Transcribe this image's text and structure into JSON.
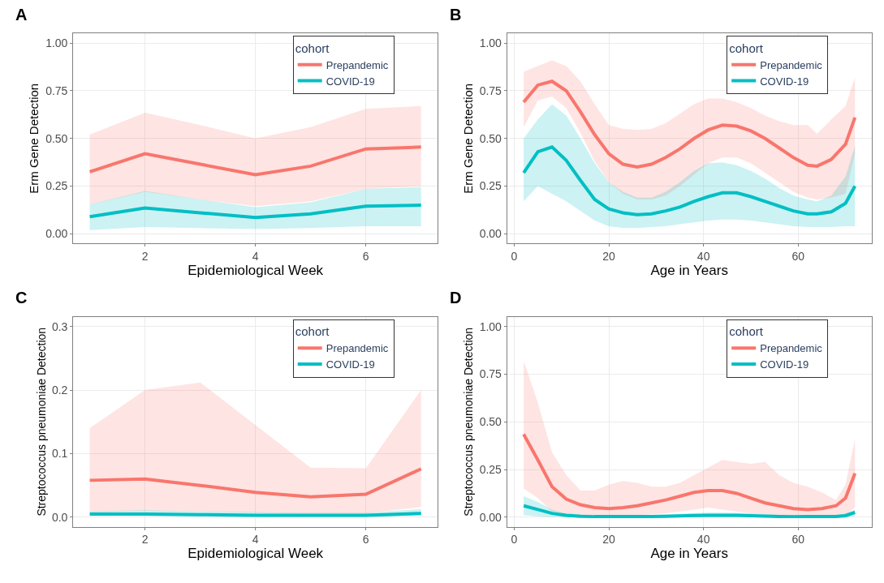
{
  "chart_data": [
    {
      "type": "line",
      "title": "A",
      "xlabel": "Epidemiological Week",
      "ylabel": "Erm Gene Detection",
      "legend_title": "cohort",
      "legend": "top right",
      "grid": true,
      "x": [
        1,
        2,
        3,
        4,
        5,
        6,
        7
      ],
      "xlim": [
        0.7,
        7.3
      ],
      "xticks": [
        2,
        4,
        6
      ],
      "ylim": [
        -0.05,
        1.05
      ],
      "yticks": [
        {
          "value": 0,
          "label": "0.00"
        },
        {
          "value": 0.25,
          "label": "0.25"
        },
        {
          "value": 0.5,
          "label": "0.50"
        },
        {
          "value": 0.75,
          "label": "0.75"
        },
        {
          "value": 1,
          "label": "1.00"
        }
      ],
      "series": [
        {
          "name": "Prepandemic",
          "color": "#f8766d",
          "values": [
            0.325,
            0.42,
            0.365,
            0.31,
            0.355,
            0.445,
            0.455
          ],
          "lower": [
            0.155,
            0.22,
            0.18,
            0.145,
            0.17,
            0.235,
            0.25
          ],
          "upper": [
            0.52,
            0.635,
            0.57,
            0.5,
            0.56,
            0.655,
            0.67
          ]
        },
        {
          "name": "COVID-19",
          "color": "#00bfc4",
          "values": [
            0.09,
            0.135,
            0.11,
            0.085,
            0.105,
            0.145,
            0.15
          ],
          "lower": [
            0.02,
            0.035,
            0.03,
            0.025,
            0.03,
            0.04,
            0.04
          ],
          "upper": [
            0.155,
            0.225,
            0.18,
            0.14,
            0.165,
            0.235,
            0.245
          ]
        }
      ]
    },
    {
      "type": "line",
      "title": "B",
      "xlabel": "Age in Years",
      "ylabel": "Erm Gene Detection",
      "legend_title": "cohort",
      "legend": "top right",
      "grid": true,
      "x": [
        2,
        5,
        8,
        11,
        14,
        17,
        20,
        23,
        26,
        29,
        32,
        35,
        38,
        41,
        44,
        47,
        50,
        53,
        56,
        59,
        62,
        64,
        67,
        70,
        72
      ],
      "xlim": [
        -1.5,
        75.5
      ],
      "xticks": [
        0,
        20,
        40,
        60
      ],
      "ylim": [
        -0.05,
        1.05
      ],
      "yticks": [
        {
          "value": 0,
          "label": "0.00"
        },
        {
          "value": 0.25,
          "label": "0.25"
        },
        {
          "value": 0.5,
          "label": "0.50"
        },
        {
          "value": 0.75,
          "label": "0.75"
        },
        {
          "value": 1,
          "label": "1.00"
        }
      ],
      "series": [
        {
          "name": "Prepandemic",
          "color": "#f8766d",
          "values": [
            0.69,
            0.78,
            0.8,
            0.75,
            0.64,
            0.52,
            0.42,
            0.365,
            0.35,
            0.365,
            0.4,
            0.445,
            0.5,
            0.545,
            0.57,
            0.565,
            0.54,
            0.5,
            0.45,
            0.4,
            0.36,
            0.355,
            0.39,
            0.47,
            0.61
          ],
          "lower": [
            0.56,
            0.7,
            0.72,
            0.66,
            0.53,
            0.38,
            0.27,
            0.21,
            0.18,
            0.18,
            0.2,
            0.25,
            0.31,
            0.37,
            0.4,
            0.4,
            0.37,
            0.32,
            0.27,
            0.22,
            0.19,
            0.18,
            0.19,
            0.21,
            0.42
          ],
          "upper": [
            0.85,
            0.88,
            0.91,
            0.88,
            0.8,
            0.68,
            0.57,
            0.55,
            0.545,
            0.55,
            0.58,
            0.63,
            0.68,
            0.71,
            0.71,
            0.69,
            0.66,
            0.62,
            0.59,
            0.57,
            0.57,
            0.525,
            0.6,
            0.67,
            0.82
          ]
        },
        {
          "name": "COVID-19",
          "color": "#00bfc4",
          "values": [
            0.32,
            0.43,
            0.455,
            0.385,
            0.28,
            0.18,
            0.13,
            0.11,
            0.1,
            0.105,
            0.12,
            0.14,
            0.17,
            0.195,
            0.215,
            0.215,
            0.195,
            0.17,
            0.145,
            0.12,
            0.105,
            0.105,
            0.115,
            0.16,
            0.25
          ],
          "lower": [
            0.17,
            0.25,
            0.21,
            0.17,
            0.12,
            0.07,
            0.04,
            0.03,
            0.03,
            0.035,
            0.04,
            0.05,
            0.06,
            0.07,
            0.075,
            0.075,
            0.07,
            0.06,
            0.05,
            0.04,
            0.035,
            0.035,
            0.035,
            0.04,
            0.04
          ],
          "upper": [
            0.5,
            0.6,
            0.68,
            0.62,
            0.5,
            0.37,
            0.27,
            0.22,
            0.19,
            0.19,
            0.22,
            0.27,
            0.33,
            0.37,
            0.375,
            0.36,
            0.33,
            0.29,
            0.24,
            0.2,
            0.18,
            0.17,
            0.2,
            0.3,
            0.46
          ]
        }
      ]
    },
    {
      "type": "line",
      "title": "C",
      "xlabel": "Epidemiological Week",
      "ylabel": "Streptococcus pneumoniae Detection",
      "legend_title": "cohort",
      "legend": "top right",
      "grid": true,
      "x": [
        1,
        2,
        3,
        4,
        5,
        6,
        7
      ],
      "xlim": [
        0.7,
        7.3
      ],
      "xticks": [
        2,
        4,
        6
      ],
      "ylim": [
        -0.015,
        0.315
      ],
      "yticks": [
        {
          "value": 0,
          "label": "0.0"
        },
        0.1,
        0.2,
        0.3
      ],
      "series": [
        {
          "name": "Prepandemic",
          "color": "#f8766d",
          "values": [
            0.058,
            0.06,
            0.05,
            0.039,
            0.032,
            0.036,
            0.076
          ],
          "lower": [
            0.008,
            0.01,
            0.009,
            0.007,
            0.006,
            0.006,
            0.016
          ],
          "upper": [
            0.14,
            0.2,
            0.212,
            0.145,
            0.078,
            0.077,
            0.2
          ]
        },
        {
          "name": "COVID-19",
          "color": "#00bfc4",
          "values": [
            0.005,
            0.005,
            0.004,
            0.003,
            0.003,
            0.003,
            0.006
          ],
          "lower": [
            0.002,
            0.002,
            0.002,
            0.001,
            0.001,
            0.001,
            0.002
          ],
          "upper": [
            0.009,
            0.011,
            0.009,
            0.008,
            0.007,
            0.007,
            0.013
          ]
        }
      ]
    },
    {
      "type": "line",
      "title": "D",
      "xlabel": "Age in Years",
      "ylabel": "Streptococcus pneumoniae Detection",
      "legend_title": "cohort",
      "legend": "top right",
      "grid": true,
      "x": [
        2,
        5,
        8,
        11,
        14,
        17,
        20,
        23,
        26,
        29,
        32,
        35,
        38,
        41,
        44,
        47,
        50,
        53,
        56,
        59,
        62,
        65,
        68,
        70,
        72
      ],
      "xlim": [
        -1.5,
        75.5
      ],
      "xticks": [
        0,
        20,
        40,
        60
      ],
      "ylim": [
        -0.05,
        1.05
      ],
      "yticks": [
        {
          "value": 0,
          "label": "0.00"
        },
        {
          "value": 0.25,
          "label": "0.25"
        },
        {
          "value": 0.5,
          "label": "0.50"
        },
        {
          "value": 0.75,
          "label": "0.75"
        },
        {
          "value": 1,
          "label": "1.00"
        }
      ],
      "series": [
        {
          "name": "Prepandemic",
          "color": "#f8766d",
          "values": [
            0.435,
            0.3,
            0.16,
            0.095,
            0.065,
            0.05,
            0.045,
            0.05,
            0.06,
            0.075,
            0.09,
            0.11,
            0.13,
            0.14,
            0.14,
            0.125,
            0.1,
            0.075,
            0.06,
            0.045,
            0.04,
            0.045,
            0.06,
            0.1,
            0.23
          ],
          "lower": [
            0.15,
            0.1,
            0.03,
            0.02,
            0.01,
            0.01,
            0.01,
            0.01,
            0.01,
            0.015,
            0.02,
            0.03,
            0.04,
            0.05,
            0.04,
            0.03,
            0.02,
            0.015,
            0.01,
            0.005,
            0.005,
            0.005,
            0.005,
            0.01,
            0.05
          ],
          "upper": [
            0.82,
            0.6,
            0.34,
            0.22,
            0.14,
            0.14,
            0.17,
            0.19,
            0.18,
            0.16,
            0.16,
            0.18,
            0.22,
            0.26,
            0.3,
            0.29,
            0.28,
            0.29,
            0.22,
            0.18,
            0.16,
            0.13,
            0.09,
            0.17,
            0.41
          ]
        },
        {
          "name": "COVID-19",
          "color": "#00bfc4",
          "values": [
            0.06,
            0.04,
            0.02,
            0.01,
            0.005,
            0.003,
            0.003,
            0.003,
            0.003,
            0.004,
            0.005,
            0.007,
            0.009,
            0.01,
            0.01,
            0.01,
            0.008,
            0.006,
            0.004,
            0.003,
            0.003,
            0.003,
            0.004,
            0.008,
            0.025
          ],
          "lower": [
            0.01,
            0.005,
            0,
            0,
            0,
            0,
            0,
            0,
            0,
            0,
            0,
            0,
            0,
            0,
            0,
            0,
            0,
            0,
            0,
            0,
            0,
            0,
            0,
            0,
            0.005
          ],
          "upper": [
            0.11,
            0.08,
            0.04,
            0.02,
            0.015,
            0.01,
            0.01,
            0.01,
            0.01,
            0.012,
            0.015,
            0.018,
            0.022,
            0.025,
            0.025,
            0.024,
            0.02,
            0.016,
            0.012,
            0.01,
            0.01,
            0.01,
            0.012,
            0.02,
            0.04
          ]
        }
      ]
    }
  ]
}
